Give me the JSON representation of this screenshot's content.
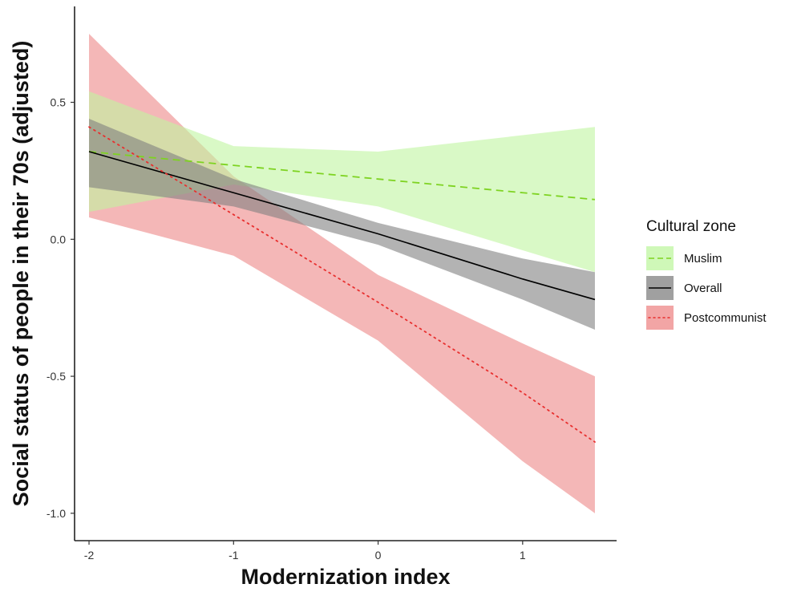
{
  "chart_data": {
    "type": "line",
    "title": "",
    "xlabel": "Modernization index",
    "ylabel": "Social status of people in their 70s (adjusted)",
    "xlim": [
      -2.1,
      1.65
    ],
    "ylim": [
      -1.1,
      0.85
    ],
    "x_ticks": [
      {
        "value": -2,
        "label": "-2"
      },
      {
        "value": -1,
        "label": "-1"
      },
      {
        "value": 0,
        "label": "0"
      },
      {
        "value": 1,
        "label": "1"
      }
    ],
    "y_ticks": [
      {
        "value": 0.5,
        "label": "0.5"
      },
      {
        "value": 0.0,
        "label": "0.0"
      },
      {
        "value": -0.5,
        "label": "-0.5"
      },
      {
        "value": -1.0,
        "label": "-1.0"
      }
    ],
    "grid": false,
    "legend": {
      "title": "Cultural zone",
      "position": "right"
    },
    "series": [
      {
        "name": "Muslim",
        "line_style": "dashed",
        "line_color": "#7ed321",
        "band_color": "#bff5a0",
        "band_opacity": 0.6,
        "x": [
          -2,
          -1,
          0,
          1,
          1.5
        ],
        "y": [
          0.32,
          0.27,
          0.22,
          0.17,
          0.145
        ],
        "lower": [
          0.1,
          0.2,
          0.12,
          -0.04,
          -0.12
        ],
        "upper": [
          0.54,
          0.34,
          0.32,
          0.38,
          0.41
        ]
      },
      {
        "name": "Overall",
        "line_style": "solid",
        "line_color": "#000000",
        "band_color": "#808080",
        "band_opacity": 0.6,
        "x": [
          -2,
          -1,
          0,
          1,
          1.5
        ],
        "y": [
          0.32,
          0.17,
          0.02,
          -0.145,
          -0.22
        ],
        "lower": [
          0.19,
          0.12,
          -0.02,
          -0.22,
          -0.33
        ],
        "upper": [
          0.44,
          0.22,
          0.06,
          -0.07,
          -0.12
        ]
      },
      {
        "name": "Postcommunist",
        "line_style": "dotted",
        "line_color": "#e8302f",
        "band_color": "#ee8a8a",
        "band_opacity": 0.62,
        "x": [
          -2,
          -1,
          0,
          1,
          1.5
        ],
        "y": [
          0.41,
          0.09,
          -0.23,
          -0.56,
          -0.74
        ],
        "lower": [
          0.08,
          -0.06,
          -0.37,
          -0.81,
          -1.0
        ],
        "upper": [
          0.75,
          0.23,
          -0.13,
          -0.38,
          -0.5
        ]
      }
    ]
  }
}
